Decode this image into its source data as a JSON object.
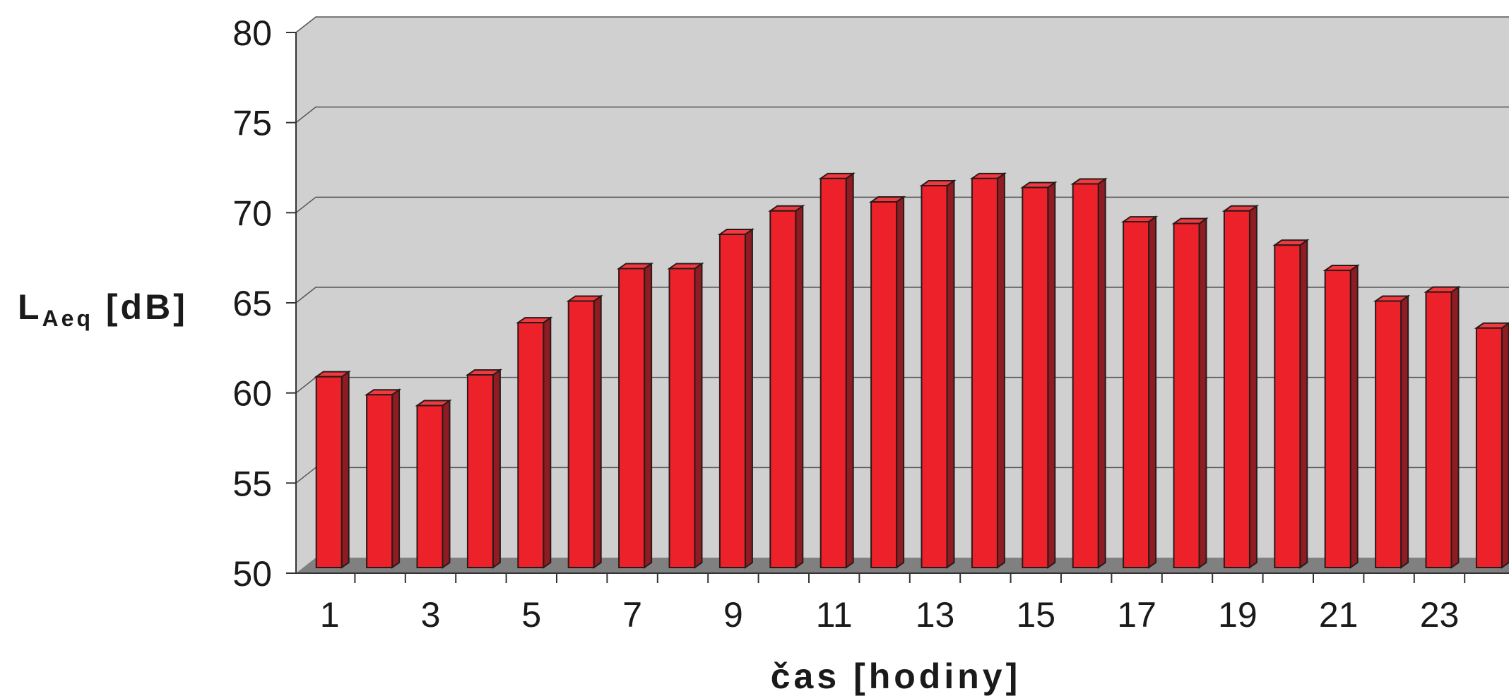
{
  "chart_data": {
    "type": "bar",
    "style": "3d-column",
    "x": [
      1,
      2,
      3,
      4,
      5,
      6,
      7,
      8,
      9,
      10,
      11,
      12,
      13,
      14,
      15,
      16,
      17,
      18,
      19,
      20,
      21,
      22,
      23,
      24
    ],
    "x_tick_labels": [
      "1",
      "3",
      "5",
      "7",
      "9",
      "11",
      "13",
      "15",
      "17",
      "19",
      "21",
      "23"
    ],
    "values": [
      60.9,
      59.9,
      59.3,
      61.0,
      63.9,
      65.1,
      66.9,
      66.9,
      68.8,
      70.1,
      71.9,
      70.6,
      71.5,
      71.9,
      71.4,
      71.6,
      69.5,
      69.4,
      70.1,
      68.2,
      66.8,
      65.1,
      65.6,
      63.6
    ],
    "ylim": [
      50,
      80
    ],
    "y_ticks": [
      "50",
      "55",
      "60",
      "65",
      "70",
      "75",
      "80"
    ],
    "ylabel": {
      "main": "L",
      "sub": "Aeq",
      "unit": " [dB]"
    },
    "xlabel": "čas [hodiny]",
    "grid": true,
    "colors": {
      "bar_front": "#ed2129",
      "bar_side": "#8e1c22",
      "bar_top": "#f13a3f",
      "wall": "#d0d0d0",
      "floor": "#808080",
      "grid": "#555555"
    }
  }
}
